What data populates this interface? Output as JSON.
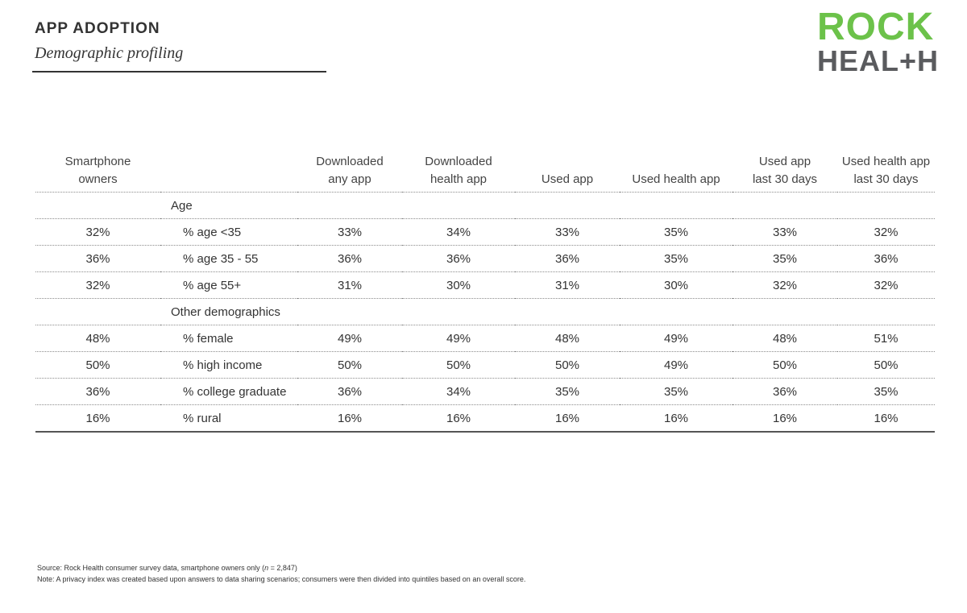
{
  "header": {
    "title": "APP ADOPTION",
    "subtitle": "Demographic profiling"
  },
  "logo": {
    "top": "ROCK",
    "bottom": "HEAL+H",
    "colors": {
      "top": "#6cc24a",
      "bottom": "#5a5b5e"
    }
  },
  "table": {
    "columns": [
      {
        "line1": "Smartphone",
        "line2": "owners"
      },
      {
        "line1": "",
        "line2": ""
      },
      {
        "line1": "Downloaded",
        "line2": "any app"
      },
      {
        "line1": "Downloaded",
        "line2": "health app"
      },
      {
        "line1": "",
        "line2": "Used app"
      },
      {
        "line1": "",
        "line2": "Used health app"
      },
      {
        "line1": "Used app",
        "line2": "last 30 days"
      },
      {
        "line1": "Used health app",
        "line2": "last 30 days"
      }
    ],
    "sections": [
      {
        "name": "Age",
        "rows": [
          {
            "owners": "32%",
            "label": "% age <35",
            "values": [
              "33%",
              "34%",
              "33%",
              "35%",
              "33%",
              "32%"
            ]
          },
          {
            "owners": "36%",
            "label": "% age 35 - 55",
            "values": [
              "36%",
              "36%",
              "36%",
              "35%",
              "35%",
              "36%"
            ]
          },
          {
            "owners": "32%",
            "label": "% age 55+",
            "values": [
              "31%",
              "30%",
              "31%",
              "30%",
              "32%",
              "32%"
            ]
          }
        ]
      },
      {
        "name": "Other demographics",
        "rows": [
          {
            "owners": "48%",
            "label": "% female",
            "values": [
              "49%",
              "49%",
              "48%",
              "49%",
              "48%",
              "51%"
            ]
          },
          {
            "owners": "50%",
            "label": "% high income",
            "values": [
              "50%",
              "50%",
              "50%",
              "49%",
              "50%",
              "50%"
            ]
          },
          {
            "owners": "36%",
            "label": "% college graduate",
            "values": [
              "36%",
              "34%",
              "35%",
              "35%",
              "36%",
              "35%"
            ]
          },
          {
            "owners": "16%",
            "label": "% rural",
            "values": [
              "16%",
              "16%",
              "16%",
              "16%",
              "16%",
              "16%"
            ]
          }
        ]
      }
    ]
  },
  "chart_data": {
    "type": "table",
    "title": "APP ADOPTION",
    "subtitle": "Demographic profiling",
    "columns": [
      "Smartphone owners",
      "Downloaded any app",
      "Downloaded health app",
      "Used app",
      "Used health app",
      "Used app last 30 days",
      "Used health app last 30 days"
    ],
    "rows": [
      {
        "group": "Age",
        "label": "% age <35",
        "values": [
          32,
          33,
          34,
          33,
          35,
          33,
          32
        ]
      },
      {
        "group": "Age",
        "label": "% age 35 - 55",
        "values": [
          36,
          36,
          36,
          36,
          35,
          35,
          36
        ]
      },
      {
        "group": "Age",
        "label": "% age 55+",
        "values": [
          32,
          31,
          30,
          31,
          30,
          32,
          32
        ]
      },
      {
        "group": "Other demographics",
        "label": "% female",
        "values": [
          48,
          49,
          49,
          48,
          49,
          48,
          51
        ]
      },
      {
        "group": "Other demographics",
        "label": "% high income",
        "values": [
          50,
          50,
          50,
          50,
          49,
          50,
          50
        ]
      },
      {
        "group": "Other demographics",
        "label": "% college graduate",
        "values": [
          36,
          36,
          34,
          35,
          35,
          36,
          35
        ]
      },
      {
        "group": "Other demographics",
        "label": "% rural",
        "values": [
          16,
          16,
          16,
          16,
          16,
          16,
          16
        ]
      }
    ]
  },
  "footer": {
    "source_prefix": "Source: Rock Health consumer survey data, smartphone owners only (",
    "source_n": "n",
    "source_suffix": " = 2,847)",
    "note": "Note: A privacy index was created based upon answers to data sharing scenarios; consumers were then divided into quintiles based on an overall score."
  }
}
